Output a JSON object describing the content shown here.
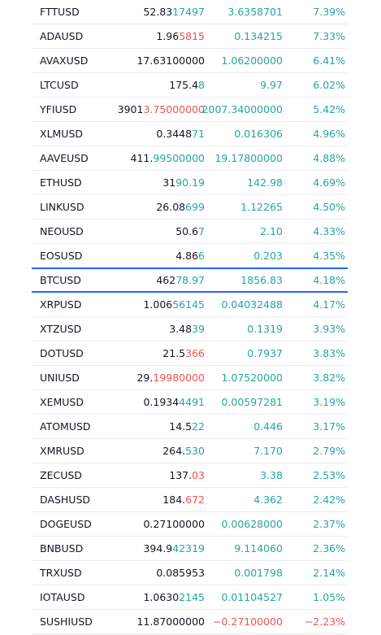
{
  "colors": {
    "up": "#26a69a",
    "down": "#ef5350",
    "highlight_border": "#2962ff",
    "text": "#131722"
  },
  "rows": [
    {
      "symbol": "FTTUSD",
      "last_base": "52.83",
      "last_tail": "17497",
      "tail_dir": "up",
      "change": "3.6358701",
      "change_pct": "7.39%",
      "dir": "up"
    },
    {
      "symbol": "ADAUSD",
      "last_base": "1.96",
      "last_tail": "5815",
      "tail_dir": "dn",
      "change": "0.134215",
      "change_pct": "7.33%",
      "dir": "up"
    },
    {
      "symbol": "AVAXUSD",
      "last_base": "17.63100000",
      "last_tail": "",
      "tail_dir": "",
      "change": "1.06200000",
      "change_pct": "6.41%",
      "dir": "up"
    },
    {
      "symbol": "LTCUSD",
      "last_base": "175.4",
      "last_tail": "8",
      "tail_dir": "up",
      "change": "9.97",
      "change_pct": "6.02%",
      "dir": "up"
    },
    {
      "symbol": "YFIUSD",
      "last_base": "3901",
      "last_tail": "3.75000000",
      "tail_dir": "dn",
      "change": "2007.34000000",
      "change_pct": "5.42%",
      "dir": "up"
    },
    {
      "symbol": "XLMUSD",
      "last_base": "0.3448",
      "last_tail": "71",
      "tail_dir": "up",
      "change": "0.016306",
      "change_pct": "4.96%",
      "dir": "up"
    },
    {
      "symbol": "AAVEUSD",
      "last_base": "411.",
      "last_tail": "99500000",
      "tail_dir": "up",
      "change": "19.17800000",
      "change_pct": "4.88%",
      "dir": "up"
    },
    {
      "symbol": "ETHUSD",
      "last_base": "31",
      "last_tail": "90.19",
      "tail_dir": "up",
      "change": "142.98",
      "change_pct": "4.69%",
      "dir": "up"
    },
    {
      "symbol": "LINKUSD",
      "last_base": "26.08",
      "last_tail": "699",
      "tail_dir": "up",
      "change": "1.12265",
      "change_pct": "4.50%",
      "dir": "up"
    },
    {
      "symbol": "NEOUSD",
      "last_base": "50.6",
      "last_tail": "7",
      "tail_dir": "up",
      "change": "2.10",
      "change_pct": "4.33%",
      "dir": "up"
    },
    {
      "symbol": "EOSUSD",
      "last_base": "4.86",
      "last_tail": "6",
      "tail_dir": "up",
      "change": "0.203",
      "change_pct": "4.35%",
      "dir": "up"
    },
    {
      "symbol": "BTCUSD",
      "last_base": "462",
      "last_tail": "78.97",
      "tail_dir": "up",
      "change": "1856.83",
      "change_pct": "4.18%",
      "dir": "up",
      "highlight": true
    },
    {
      "symbol": "XRPUSD",
      "last_base": "1.006",
      "last_tail": "56145",
      "tail_dir": "up",
      "change": "0.04032488",
      "change_pct": "4.17%",
      "dir": "up"
    },
    {
      "symbol": "XTZUSD",
      "last_base": "3.48",
      "last_tail": "39",
      "tail_dir": "up",
      "change": "0.1319",
      "change_pct": "3.93%",
      "dir": "up"
    },
    {
      "symbol": "DOTUSD",
      "last_base": "21.5",
      "last_tail": "366",
      "tail_dir": "dn",
      "change": "0.7937",
      "change_pct": "3.83%",
      "dir": "up"
    },
    {
      "symbol": "UNIUSD",
      "last_base": "29.",
      "last_tail": "19980000",
      "tail_dir": "dn",
      "change": "1.07520000",
      "change_pct": "3.82%",
      "dir": "up"
    },
    {
      "symbol": "XEMUSD",
      "last_base": "0.1934",
      "last_tail": "4491",
      "tail_dir": "up",
      "change": "0.00597281",
      "change_pct": "3.19%",
      "dir": "up"
    },
    {
      "symbol": "ATOMUSD",
      "last_base": "14.5",
      "last_tail": "22",
      "tail_dir": "up",
      "change": "0.446",
      "change_pct": "3.17%",
      "dir": "up"
    },
    {
      "symbol": "XMRUSD",
      "last_base": "264.",
      "last_tail": "530",
      "tail_dir": "up",
      "change": "7.170",
      "change_pct": "2.79%",
      "dir": "up"
    },
    {
      "symbol": "ZECUSD",
      "last_base": "137.",
      "last_tail": "03",
      "tail_dir": "dn",
      "change": "3.38",
      "change_pct": "2.53%",
      "dir": "up"
    },
    {
      "symbol": "DASHUSD",
      "last_base": "184.",
      "last_tail": "672",
      "tail_dir": "dn",
      "change": "4.362",
      "change_pct": "2.42%",
      "dir": "up"
    },
    {
      "symbol": "DOGEUSD",
      "last_base": "0.27100000",
      "last_tail": "",
      "tail_dir": "",
      "change": "0.00628000",
      "change_pct": "2.37%",
      "dir": "up"
    },
    {
      "symbol": "BNBUSD",
      "last_base": "394.9",
      "last_tail": "42319",
      "tail_dir": "up",
      "change": "9.114060",
      "change_pct": "2.36%",
      "dir": "up"
    },
    {
      "symbol": "TRXUSD",
      "last_base": "0.085953",
      "last_tail": "",
      "tail_dir": "",
      "change": "0.001798",
      "change_pct": "2.14%",
      "dir": "up"
    },
    {
      "symbol": "IOTAUSD",
      "last_base": "1.0630",
      "last_tail": "2145",
      "tail_dir": "up",
      "change": "0.01104527",
      "change_pct": "1.05%",
      "dir": "up"
    },
    {
      "symbol": "SUSHIUSD",
      "last_base": "11.87000000",
      "last_tail": "",
      "tail_dir": "",
      "change": "−0.27100000",
      "change_pct": "−2.23%",
      "dir": "dn"
    }
  ]
}
